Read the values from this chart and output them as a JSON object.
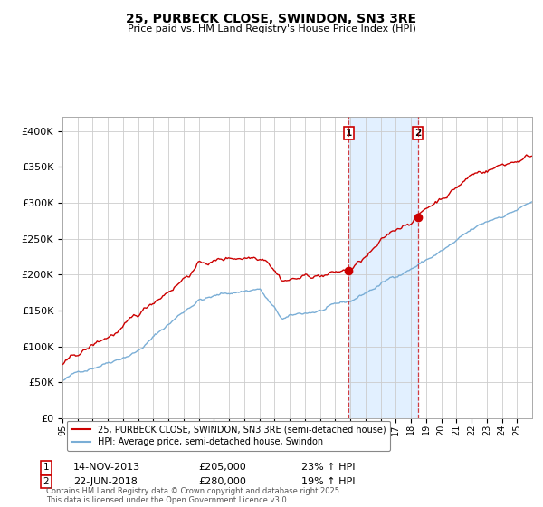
{
  "title": "25, PURBECK CLOSE, SWINDON, SN3 3RE",
  "subtitle": "Price paid vs. HM Land Registry's House Price Index (HPI)",
  "legend_line1": "25, PURBECK CLOSE, SWINDON, SN3 3RE (semi-detached house)",
  "legend_line2": "HPI: Average price, semi-detached house, Swindon",
  "transaction1_date": "14-NOV-2013",
  "transaction1_price": "£205,000",
  "transaction1_hpi": "23% ↑ HPI",
  "transaction2_date": "22-JUN-2018",
  "transaction2_price": "£280,000",
  "transaction2_hpi": "19% ↑ HPI",
  "footer": "Contains HM Land Registry data © Crown copyright and database right 2025.\nThis data is licensed under the Open Government Licence v3.0.",
  "red_color": "#cc0000",
  "blue_color": "#7aaed6",
  "background_color": "#ffffff",
  "grid_color": "#cccccc",
  "shade_color": "#ddeeff",
  "title_fontsize": 10,
  "subtitle_fontsize": 8
}
